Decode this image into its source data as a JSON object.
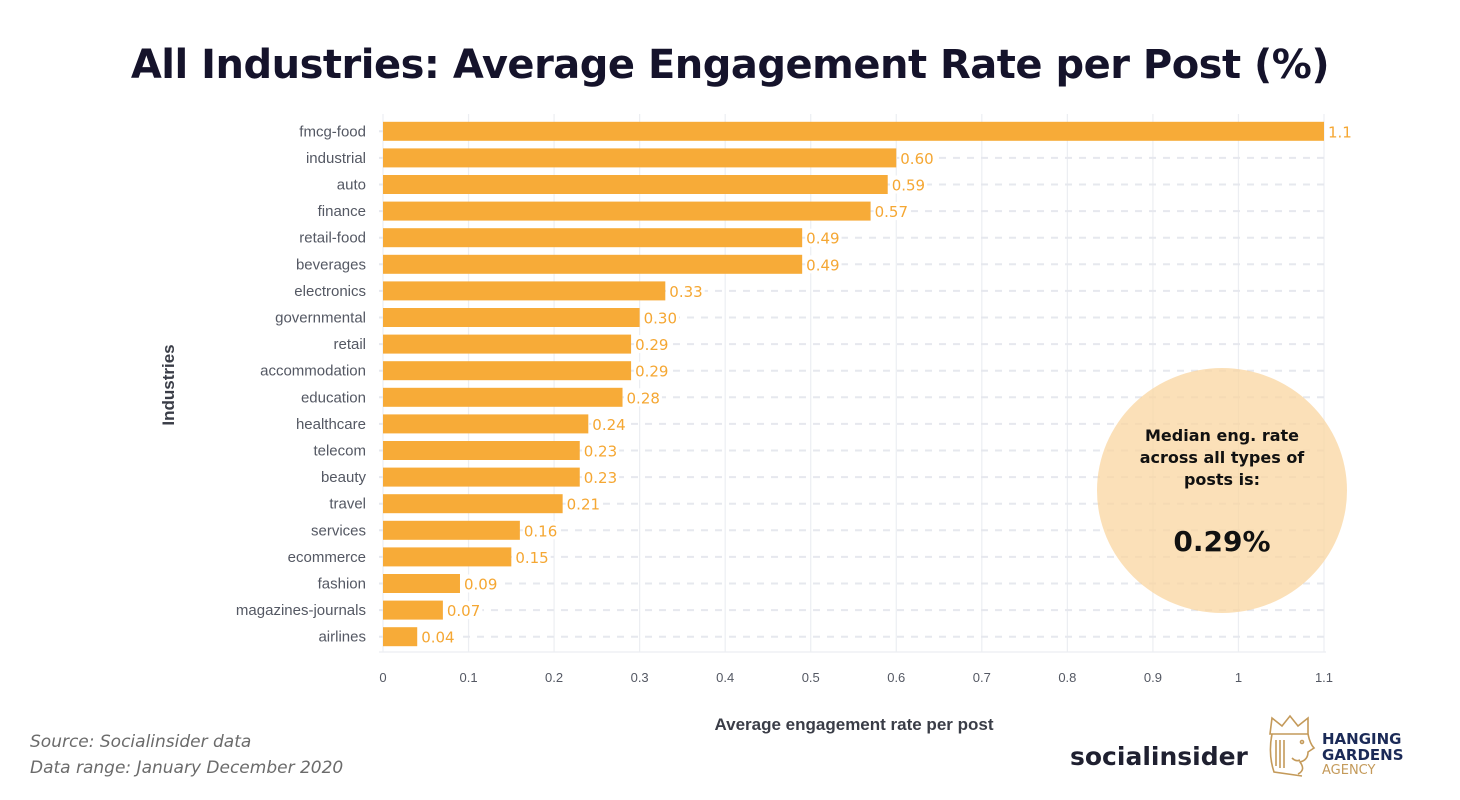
{
  "title": "All Industries: Average Engagement Rate per Post (%)",
  "median": {
    "line1": "Median eng. rate",
    "line2": "across all types of",
    "line3": "posts is:",
    "value": "0.29%"
  },
  "footer": {
    "source": "Source: Socialinsider data",
    "range": "Data range: January  December 2020"
  },
  "logos": {
    "socialinsider": "socialinsider",
    "hg_line1": "HANGING",
    "hg_line2": "GARDENS",
    "hg_line3": "AGENCY"
  },
  "colors": {
    "bar": "#f7ab38",
    "value_label": "#f5a733",
    "median_circle": "#fad6a0",
    "title": "#15132b"
  },
  "chart_data": {
    "type": "bar",
    "orientation": "horizontal",
    "title": "All Industries: Average Engagement Rate per Post (%)",
    "xlabel": "Average engagement rate per post",
    "ylabel": "Industries",
    "xlim": [
      0,
      1.1
    ],
    "xticks": [
      0,
      0.1,
      0.2,
      0.3,
      0.4,
      0.5,
      0.6,
      0.7,
      0.8,
      0.9,
      1,
      1.1
    ],
    "xtick_labels": [
      "0",
      "0.1",
      "0.2",
      "0.3",
      "0.4",
      "0.5",
      "0.6",
      "0.7",
      "0.8",
      "0.9",
      "1",
      "1.1"
    ],
    "grid": true,
    "categories": [
      "fmcg-food",
      "industrial",
      "auto",
      "finance",
      "retail-food",
      "beverages",
      "electronics",
      "governmental",
      "retail",
      "accommodation",
      "education",
      "healthcare",
      "telecom",
      "beauty",
      "travel",
      "services",
      "ecommerce",
      "fashion",
      "magazines-journals",
      "airlines"
    ],
    "values": [
      1.1,
      0.6,
      0.59,
      0.57,
      0.49,
      0.49,
      0.33,
      0.3,
      0.29,
      0.29,
      0.28,
      0.24,
      0.23,
      0.23,
      0.21,
      0.16,
      0.15,
      0.09,
      0.07,
      0.04
    ],
    "value_labels": [
      "1.1",
      "0.60",
      "0.59",
      "0.57",
      "0.49",
      "0.49",
      "0.33",
      "0.30",
      "0.29",
      "0.29",
      "0.28",
      "0.24",
      "0.23",
      "0.23",
      "0.21",
      "0.16",
      "0.15",
      "0.09",
      "0.07",
      "0.04"
    ],
    "annotation": "Median eng. rate across all types of posts is: 0.29%"
  }
}
